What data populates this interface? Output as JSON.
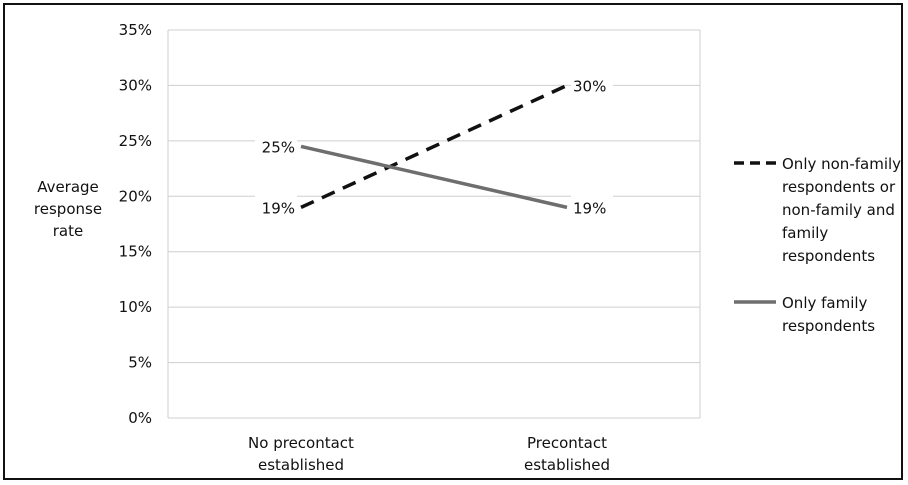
{
  "chart_data": {
    "type": "line",
    "categories": [
      [
        "No precontact",
        "established"
      ],
      [
        "Precontact",
        "established"
      ]
    ],
    "ylabel": [
      "Average",
      "response",
      "rate"
    ],
    "ylim": [
      0,
      35
    ],
    "yticks": [
      "0%",
      "5%",
      "10%",
      "15%",
      "20%",
      "25%",
      "30%",
      "35%"
    ],
    "ytick_values": [
      0,
      5,
      10,
      15,
      20,
      25,
      30,
      35
    ],
    "grid": true,
    "legend_position": "right",
    "series": [
      {
        "name": [
          "Only non-family",
          "respondents or",
          "non-family and",
          "family",
          "respondents"
        ],
        "values": [
          19,
          30
        ],
        "labels": [
          "19%",
          "30%"
        ],
        "style": "dashed",
        "color": "#111111"
      },
      {
        "name": [
          "Only family",
          "respondents"
        ],
        "values": [
          24.5,
          19
        ],
        "labels": [
          "25%",
          "19%"
        ],
        "style": "solid",
        "color": "#6e6e6e"
      }
    ]
  }
}
